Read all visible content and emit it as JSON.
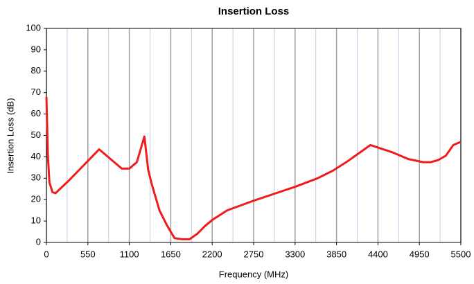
{
  "chart_data": {
    "type": "line",
    "title": "Insertion Loss",
    "x_label": "Frequency (MHz)",
    "y_label": "Insertion Loss (dB)",
    "x": [
      0,
      20,
      40,
      80,
      120,
      300,
      700,
      1000,
      1100,
      1200,
      1300,
      1350,
      1400,
      1500,
      1600,
      1700,
      1800,
      1900,
      2000,
      2100,
      2200,
      2400,
      2750,
      3300,
      3600,
      3800,
      4000,
      4300,
      4600,
      4800,
      5000,
      5100,
      5200,
      5300,
      5400,
      5500
    ],
    "series": [
      {
        "name": "Insertion Loss",
        "color": "#ee1c1c",
        "values": [
          68,
          40,
          28,
          23.5,
          23,
          29,
          43.5,
          34.5,
          34.5,
          37.5,
          49.5,
          34,
          27,
          15,
          8,
          2,
          1.5,
          1.5,
          4,
          7.5,
          10.5,
          15,
          19.5,
          26,
          30,
          33.5,
          38,
          45.5,
          42,
          39,
          37.5,
          37.5,
          38.5,
          40.5,
          45.5,
          47
        ]
      }
    ],
    "xlim": [
      0,
      5500
    ],
    "xticks": [
      0,
      550,
      1100,
      1650,
      2200,
      2750,
      3300,
      3850,
      4400,
      4950,
      5500
    ],
    "minor_xticks": [
      275,
      825,
      1375,
      1925,
      2475,
      3025,
      3575,
      4125,
      4675,
      5225
    ],
    "ylim": [
      0,
      100
    ],
    "yticks": [
      0,
      10,
      20,
      30,
      40,
      50,
      60,
      70,
      80,
      90,
      100
    ],
    "grid": "x"
  }
}
